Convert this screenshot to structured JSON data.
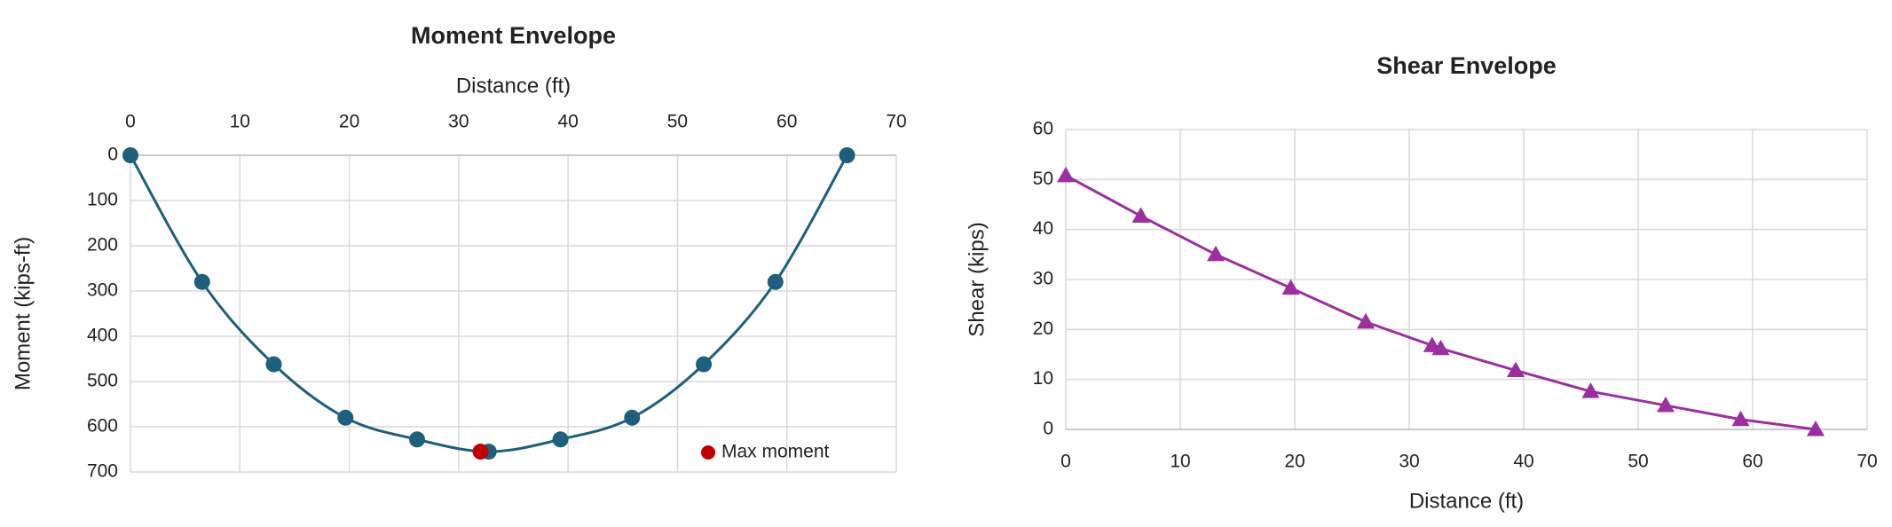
{
  "chart_data": [
    {
      "type": "scatter",
      "title": "Moment Envelope",
      "x_label": "Distance (ft)",
      "y_label": "Moment (kips-ft)",
      "x_axis_position": "top",
      "y_reversed": true,
      "grid": true,
      "legend": "bottom-right",
      "xlim": [
        0,
        70
      ],
      "xticks": [
        0,
        10,
        20,
        30,
        40,
        50,
        60,
        70
      ],
      "ylim": [
        0,
        700
      ],
      "yticks": [
        0,
        100,
        200,
        300,
        400,
        500,
        600,
        700
      ],
      "series": [
        {
          "color": "#1d5f7c",
          "marker": "circle",
          "line": "smooth",
          "x": [
            0,
            6.55,
            13.1,
            19.65,
            26.2,
            32.75,
            39.3,
            45.85,
            52.4,
            58.95,
            65.5
          ],
          "values": [
            0,
            280,
            462,
            580,
            628,
            655,
            628,
            580,
            462,
            280,
            0
          ]
        },
        {
          "name": "Max moment",
          "color": "#c00000",
          "marker": "circle",
          "x": [
            32
          ],
          "values": [
            655
          ]
        }
      ]
    },
    {
      "type": "scatter",
      "title": "Shear Envelope",
      "x_label": "Distance (ft)",
      "y_label": "Shear (kips)",
      "x_axis_position": "bottom",
      "y_reversed": false,
      "grid": true,
      "xlim": [
        0,
        70
      ],
      "xticks": [
        0,
        10,
        20,
        30,
        40,
        50,
        60,
        70
      ],
      "ylim": [
        0,
        60
      ],
      "yticks": [
        0,
        10,
        20,
        30,
        40,
        50,
        60
      ],
      "series": [
        {
          "color": "#9b2fa0",
          "marker": "triangle",
          "line": "straight",
          "x": [
            0,
            6.55,
            13.1,
            19.65,
            26.2,
            32,
            32.75,
            39.3,
            45.85,
            52.4,
            58.95,
            65.5
          ],
          "values": [
            50.8,
            42.7,
            35,
            28.3,
            21.5,
            16.8,
            16.2,
            11.8,
            7.6,
            4.8,
            2.0,
            0
          ]
        }
      ]
    }
  ]
}
